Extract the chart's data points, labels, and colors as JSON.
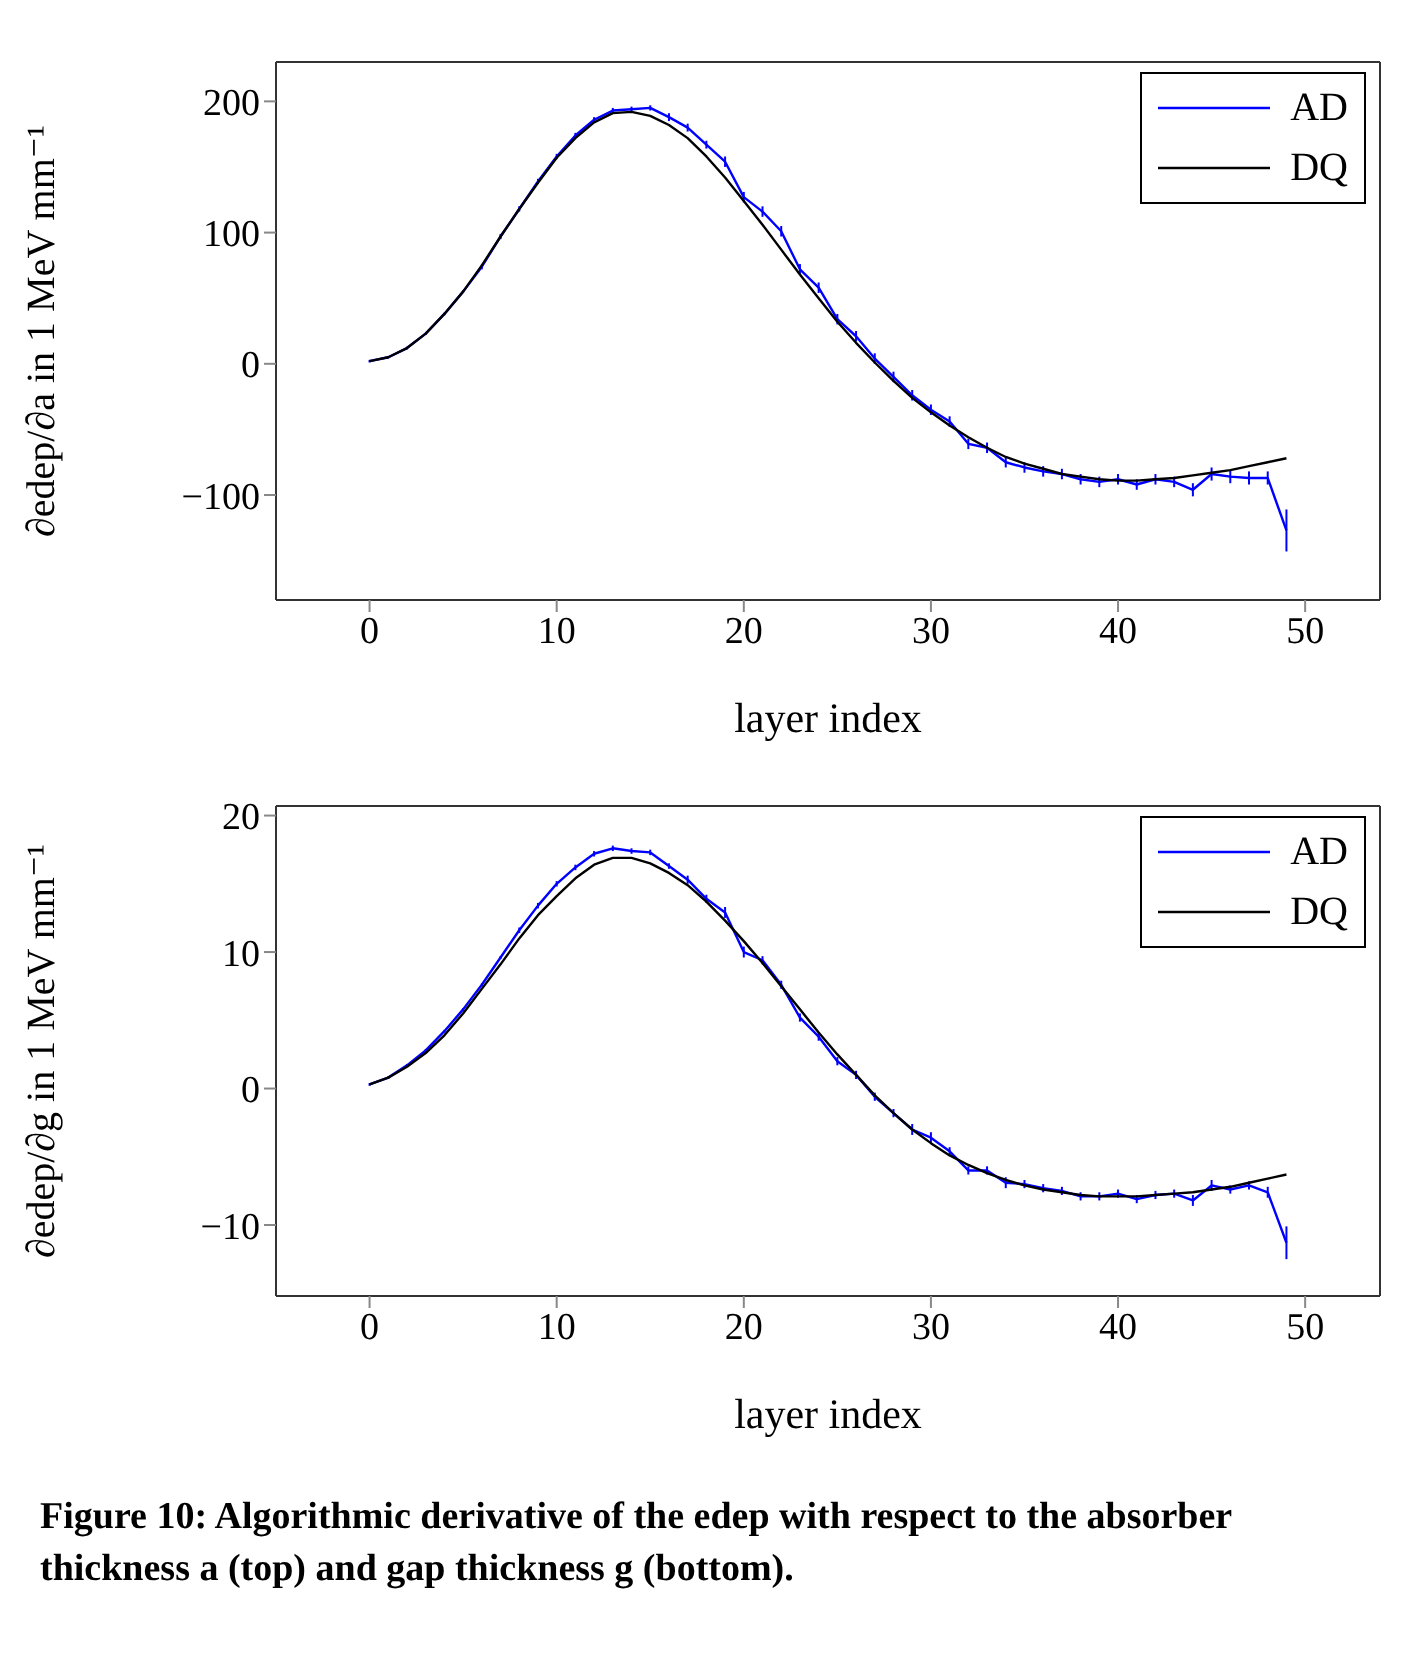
{
  "chart_data": [
    {
      "type": "line",
      "xlabel": "layer index",
      "ylabel": "∂edep/∂a in 1 MeV mm⁻¹",
      "x": [
        0,
        1,
        2,
        3,
        4,
        5,
        6,
        7,
        8,
        9,
        10,
        11,
        12,
        13,
        14,
        15,
        16,
        17,
        18,
        19,
        20,
        21,
        22,
        23,
        24,
        25,
        26,
        27,
        28,
        29,
        30,
        31,
        32,
        33,
        34,
        35,
        36,
        37,
        38,
        39,
        40,
        41,
        42,
        43,
        44,
        45,
        46,
        47,
        48,
        49
      ],
      "xlim": [
        -5,
        54
      ],
      "xticks": [
        0,
        10,
        20,
        30,
        40,
        50
      ],
      "ylim": [
        -180,
        230
      ],
      "yticks": [
        -100,
        0,
        100,
        200
      ],
      "grid": false,
      "legend": "top right",
      "series": [
        {
          "name": "AD",
          "color": "#0000ff",
          "values": [
            2,
            5,
            12,
            23,
            38,
            55,
            74,
            97,
            118,
            139,
            158,
            174,
            186,
            193,
            194,
            195,
            188,
            180,
            167,
            154,
            127,
            116,
            101,
            72,
            58,
            34,
            21,
            4,
            -10,
            -24,
            -35,
            -44,
            -61,
            -64,
            -75,
            -79,
            -82,
            -84,
            -88,
            -90,
            -88,
            -92,
            -88,
            -90,
            -96,
            -84,
            -86,
            -87,
            -87,
            -127
          ],
          "errors": [
            1,
            1,
            1,
            1,
            1,
            1,
            2,
            2,
            2,
            2,
            2,
            2,
            2,
            2,
            2,
            2,
            3,
            3,
            3,
            4,
            4,
            4,
            4,
            4,
            4,
            4,
            4,
            4,
            4,
            4,
            4,
            4,
            4,
            4,
            4,
            4,
            4,
            4,
            4,
            4,
            4,
            4,
            4,
            4,
            5,
            5,
            5,
            5,
            5,
            16
          ]
        },
        {
          "name": "DQ",
          "color": "#000000",
          "values": [
            2,
            5,
            12,
            23,
            38,
            55,
            75,
            97,
            118,
            138,
            157,
            172,
            184,
            191,
            192,
            189,
            182,
            172,
            158,
            142,
            124,
            106,
            87,
            68,
            50,
            32,
            16,
            1,
            -13,
            -26,
            -37,
            -47,
            -56,
            -64,
            -71,
            -76,
            -80,
            -84,
            -86,
            -88,
            -89,
            -89,
            -88,
            -87,
            -85,
            -83,
            -81,
            -78,
            -75,
            -72
          ]
        }
      ]
    },
    {
      "type": "line",
      "xlabel": "layer index",
      "ylabel": "∂edep/∂g in 1 MeV mm⁻¹",
      "x": [
        0,
        1,
        2,
        3,
        4,
        5,
        6,
        7,
        8,
        9,
        10,
        11,
        12,
        13,
        14,
        15,
        16,
        17,
        18,
        19,
        20,
        21,
        22,
        23,
        24,
        25,
        26,
        27,
        28,
        29,
        30,
        31,
        32,
        33,
        34,
        35,
        36,
        37,
        38,
        39,
        40,
        41,
        42,
        43,
        44,
        45,
        46,
        47,
        48,
        49
      ],
      "xlim": [
        -5,
        54
      ],
      "xticks": [
        0,
        10,
        20,
        30,
        40,
        50
      ],
      "ylim": [
        -15.2,
        20.7
      ],
      "yticks": [
        -10,
        0,
        10,
        20
      ],
      "grid": false,
      "legend": "top right",
      "annotations": [
        "Figure 10: Algorithmic derivative of the edep with respect to the absorber thickness a (top) and gap thickness g (bottom)."
      ],
      "series": [
        {
          "name": "AD",
          "color": "#0000ff",
          "values": [
            0.3,
            0.8,
            1.7,
            2.8,
            4.2,
            5.8,
            7.6,
            9.6,
            11.6,
            13.4,
            15,
            16.2,
            17.2,
            17.6,
            17.4,
            17.3,
            16.3,
            15.3,
            13.9,
            12.9,
            10,
            9.4,
            7.6,
            5.2,
            3.8,
            2,
            1,
            -0.6,
            -1.8,
            -3,
            -3.6,
            -4.6,
            -6,
            -6,
            -6.9,
            -7,
            -7.3,
            -7.5,
            -7.9,
            -7.9,
            -7.7,
            -8.1,
            -7.8,
            -7.7,
            -8.2,
            -7.1,
            -7.4,
            -7.1,
            -7.6,
            -11.3
          ],
          "errors": [
            0.1,
            0.1,
            0.1,
            0.1,
            0.1,
            0.1,
            0.1,
            0.1,
            0.2,
            0.2,
            0.2,
            0.2,
            0.2,
            0.2,
            0.2,
            0.2,
            0.2,
            0.3,
            0.3,
            0.4,
            0.4,
            0.3,
            0.3,
            0.3,
            0.3,
            0.3,
            0.3,
            0.3,
            0.3,
            0.4,
            0.4,
            0.3,
            0.3,
            0.3,
            0.4,
            0.3,
            0.3,
            0.3,
            0.3,
            0.3,
            0.3,
            0.3,
            0.3,
            0.3,
            0.4,
            0.4,
            0.3,
            0.3,
            0.4,
            1.2
          ]
        },
        {
          "name": "DQ",
          "color": "#000000",
          "values": [
            0.3,
            0.8,
            1.6,
            2.6,
            3.9,
            5.5,
            7.3,
            9.1,
            11,
            12.7,
            14.1,
            15.4,
            16.4,
            16.9,
            16.9,
            16.5,
            15.8,
            14.9,
            13.7,
            12.3,
            10.8,
            9.2,
            7.5,
            5.8,
            4.1,
            2.5,
            1,
            -0.5,
            -1.8,
            -3,
            -4,
            -4.9,
            -5.6,
            -6.2,
            -6.7,
            -7.1,
            -7.4,
            -7.6,
            -7.8,
            -7.9,
            -7.9,
            -7.9,
            -7.8,
            -7.7,
            -7.6,
            -7.4,
            -7.2,
            -6.9,
            -6.6,
            -6.3
          ]
        }
      ]
    }
  ]
}
